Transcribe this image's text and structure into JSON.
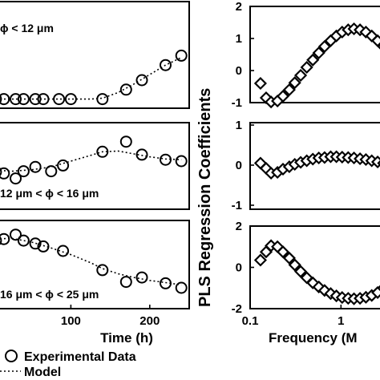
{
  "chart_data": [
    {
      "type": "scatter",
      "panel": "left-top",
      "annotation": "ϕ < 12 μm",
      "xlim": [
        0,
        250
      ],
      "ylim": [
        0,
        1
      ],
      "xticks": [],
      "series": [
        {
          "name": "Experimental Data",
          "marker": "circle",
          "x": [
            5,
            15,
            30,
            40,
            55,
            65,
            85,
            100,
            140,
            170,
            190,
            220,
            240
          ],
          "y": [
            0.02,
            0.02,
            0.02,
            0.02,
            0.02,
            0.02,
            0.02,
            0.02,
            0.02,
            0.12,
            0.22,
            0.38,
            0.48
          ]
        },
        {
          "name": "Model",
          "style": "dotted",
          "x": [
            0,
            25,
            50,
            75,
            100,
            125,
            140,
            160,
            180,
            200,
            220,
            240
          ],
          "y": [
            0.02,
            0.02,
            0.02,
            0.02,
            0.02,
            0.02,
            0.03,
            0.09,
            0.18,
            0.28,
            0.38,
            0.46
          ]
        }
      ]
    },
    {
      "type": "scatter",
      "panel": "left-middle",
      "annotation": "12 μm < ϕ < 16 μm",
      "xlim": [
        0,
        250
      ],
      "ylim": [
        0,
        1
      ],
      "xticks": [],
      "series": [
        {
          "name": "Experimental Data",
          "marker": "circle",
          "x": [
            5,
            15,
            30,
            40,
            55,
            75,
            90,
            140,
            170,
            190,
            220,
            240
          ],
          "y": [
            0.35,
            0.33,
            0.26,
            0.36,
            0.42,
            0.36,
            0.44,
            0.63,
            0.77,
            0.59,
            0.52,
            0.5
          ]
        },
        {
          "name": "Model",
          "style": "dotted",
          "x": [
            0,
            25,
            50,
            75,
            100,
            125,
            140,
            160,
            180,
            200,
            220,
            240
          ],
          "y": [
            0.38,
            0.36,
            0.38,
            0.42,
            0.5,
            0.58,
            0.63,
            0.64,
            0.6,
            0.56,
            0.53,
            0.52
          ]
        }
      ]
    },
    {
      "type": "scatter",
      "panel": "left-bottom",
      "annotation": "16 μm < ϕ < 25 μm",
      "xlim": [
        0,
        250
      ],
      "ylim": [
        0,
        1
      ],
      "xticks": [
        100,
        200
      ],
      "xlabel": "Time (h)",
      "series": [
        {
          "name": "Experimental Data",
          "marker": "circle",
          "x": [
            5,
            15,
            30,
            40,
            55,
            65,
            90,
            140,
            170,
            190,
            220,
            240
          ],
          "y": [
            0.76,
            0.78,
            0.84,
            0.76,
            0.72,
            0.68,
            0.62,
            0.36,
            0.2,
            0.26,
            0.18,
            0.12
          ]
        },
        {
          "name": "Model",
          "style": "dotted",
          "x": [
            0,
            25,
            50,
            75,
            100,
            125,
            140,
            160,
            180,
            200,
            220,
            240
          ],
          "y": [
            0.78,
            0.79,
            0.74,
            0.66,
            0.57,
            0.46,
            0.38,
            0.31,
            0.26,
            0.22,
            0.19,
            0.16
          ]
        }
      ]
    },
    {
      "type": "line",
      "panel": "right-top",
      "xscale": "log",
      "xlim": [
        0.1,
        3.5
      ],
      "ylim": [
        -1,
        2
      ],
      "yticks": [
        -1,
        0,
        1,
        2
      ],
      "xticks": [],
      "series": [
        {
          "name": "PLS Regression Coefficients",
          "marker": "diamond",
          "x": [
            0.13,
            0.15,
            0.17,
            0.2,
            0.23,
            0.27,
            0.31,
            0.36,
            0.42,
            0.49,
            0.57,
            0.66,
            0.77,
            0.89,
            1.03,
            1.2,
            1.39,
            1.62,
            1.88,
            2.18,
            2.53,
            2.94,
            3.41
          ],
          "y": [
            -0.4,
            -0.85,
            -0.98,
            -0.95,
            -0.8,
            -0.6,
            -0.38,
            -0.15,
            0.1,
            0.33,
            0.55,
            0.75,
            0.93,
            1.08,
            1.2,
            1.27,
            1.3,
            1.27,
            1.2,
            1.08,
            0.93,
            0.75,
            0.55
          ]
        }
      ]
    },
    {
      "type": "line",
      "panel": "right-middle",
      "xscale": "log",
      "xlim": [
        0.1,
        3.5
      ],
      "ylim": [
        -1,
        1
      ],
      "yticks": [
        -1,
        0,
        1
      ],
      "xticks": [],
      "series": [
        {
          "name": "PLS Regression Coefficients",
          "marker": "diamond",
          "x": [
            0.13,
            0.15,
            0.17,
            0.2,
            0.23,
            0.27,
            0.31,
            0.36,
            0.42,
            0.49,
            0.57,
            0.66,
            0.77,
            0.89,
            1.03,
            1.2,
            1.39,
            1.62,
            1.88,
            2.18,
            2.53,
            2.94,
            3.41
          ],
          "y": [
            0.05,
            -0.08,
            -0.2,
            -0.18,
            -0.1,
            -0.04,
            0.02,
            0.07,
            0.11,
            0.15,
            0.18,
            0.19,
            0.21,
            0.21,
            0.2,
            0.19,
            0.18,
            0.16,
            0.14,
            0.11,
            0.08,
            0.05,
            0.02
          ]
        }
      ]
    },
    {
      "type": "line",
      "panel": "right-bottom",
      "xscale": "log",
      "xlim": [
        0.1,
        3.5
      ],
      "ylim": [
        -2,
        2
      ],
      "yticks": [
        -2,
        0,
        2
      ],
      "xticks": [
        0.1,
        1
      ],
      "xticklabels": [
        "0.1",
        "1"
      ],
      "xlabel": "Frequency (M",
      "series": [
        {
          "name": "PLS Regression Coefficients",
          "marker": "diamond",
          "x": [
            0.13,
            0.15,
            0.17,
            0.2,
            0.23,
            0.27,
            0.31,
            0.36,
            0.42,
            0.49,
            0.57,
            0.66,
            0.77,
            0.89,
            1.03,
            1.2,
            1.39,
            1.62,
            1.88,
            2.18,
            2.53,
            2.94,
            3.41
          ],
          "y": [
            0.35,
            0.75,
            1.05,
            1.0,
            0.75,
            0.45,
            0.12,
            -0.2,
            -0.5,
            -0.75,
            -0.95,
            -1.12,
            -1.27,
            -1.38,
            -1.46,
            -1.5,
            -1.52,
            -1.5,
            -1.45,
            -1.36,
            -1.22,
            -1.0,
            -0.75
          ]
        }
      ]
    }
  ],
  "labels": {
    "y_axis_right": "PLS Regression Coefficients",
    "x_axis_left": "Time (h)",
    "x_axis_right": "Frequency (M",
    "ann_top": "ϕ < 12 μm",
    "ann_middle": "12 μm < ϕ < 16 μm",
    "ann_bottom": "16 μm < ϕ < 25 μm",
    "legend_data": "Experimental Data",
    "legend_model": "Model"
  }
}
